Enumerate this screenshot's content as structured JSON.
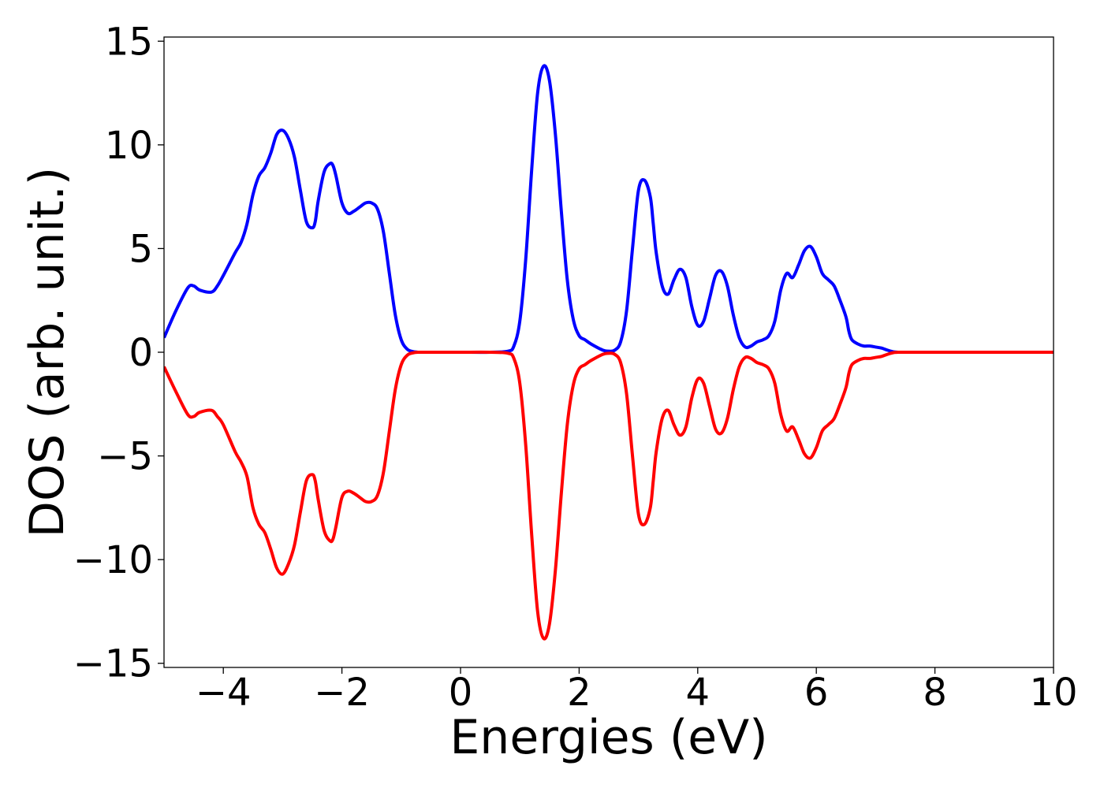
{
  "chart_data": {
    "type": "line",
    "title": "",
    "xlabel": "Energies (eV)",
    "ylabel": "DOS (arb. unit.)",
    "xlim": [
      -5,
      10
    ],
    "ylim": [
      -15.2,
      15.2
    ],
    "xticks": [
      -4,
      -2,
      0,
      2,
      4,
      6,
      8,
      10
    ],
    "xtick_labels": [
      "−4",
      "−2",
      "0",
      "2",
      "4",
      "6",
      "8",
      "10"
    ],
    "yticks": [
      15,
      10,
      5,
      0,
      -5,
      -10,
      -15
    ],
    "ytick_labels": [
      "15",
      "10",
      "5",
      "0",
      "−5",
      "−10",
      "−15"
    ],
    "grid": false,
    "legend": "none",
    "series": [
      {
        "color": "#0000ff",
        "x": [
          -5.0,
          -4.8,
          -4.6,
          -4.5,
          -4.4,
          -4.2,
          -4.1,
          -4.0,
          -3.8,
          -3.7,
          -3.6,
          -3.5,
          -3.4,
          -3.3,
          -3.2,
          -3.1,
          -3.0,
          -2.9,
          -2.8,
          -2.7,
          -2.6,
          -2.5,
          -2.45,
          -2.4,
          -2.3,
          -2.2,
          -2.15,
          -2.1,
          -2.0,
          -1.9,
          -1.8,
          -1.7,
          -1.6,
          -1.5,
          -1.4,
          -1.3,
          -1.2,
          -1.1,
          -1.0,
          -0.9,
          -0.8,
          -0.7,
          -0.6,
          -0.4,
          0.0,
          0.5,
          0.8,
          0.9,
          1.0,
          1.1,
          1.2,
          1.3,
          1.4,
          1.5,
          1.6,
          1.7,
          1.8,
          1.9,
          2.0,
          2.1,
          2.2,
          2.4,
          2.5,
          2.6,
          2.7,
          2.8,
          2.9,
          3.0,
          3.1,
          3.2,
          3.25,
          3.3,
          3.4,
          3.5,
          3.6,
          3.7,
          3.8,
          3.9,
          4.0,
          4.1,
          4.2,
          4.3,
          4.4,
          4.5,
          4.6,
          4.7,
          4.8,
          4.9,
          5.0,
          5.1,
          5.2,
          5.3,
          5.4,
          5.5,
          5.6,
          5.7,
          5.8,
          5.9,
          6.0,
          6.1,
          6.2,
          6.3,
          6.4,
          6.5,
          6.55,
          6.6,
          6.7,
          6.8,
          6.9,
          7.0,
          7.1,
          7.2,
          7.3,
          7.4,
          7.5,
          7.6,
          7.7,
          7.8,
          7.9,
          8.0,
          8.2,
          8.5,
          9.0,
          10.0
        ],
        "values": [
          0.7,
          2.0,
          3.1,
          3.2,
          3.0,
          2.9,
          3.2,
          3.7,
          4.8,
          5.3,
          6.2,
          7.6,
          8.5,
          8.9,
          9.6,
          10.5,
          10.7,
          10.3,
          9.4,
          7.8,
          6.3,
          6.0,
          6.3,
          7.3,
          8.7,
          9.1,
          9.0,
          8.5,
          7.2,
          6.7,
          6.8,
          7.0,
          7.2,
          7.2,
          6.9,
          5.8,
          3.8,
          1.8,
          0.6,
          0.15,
          0.03,
          0.0,
          0.0,
          0.0,
          0.0,
          0.0,
          0.05,
          0.3,
          1.5,
          4.5,
          8.8,
          12.5,
          13.8,
          13.1,
          10.5,
          6.8,
          3.5,
          1.6,
          0.8,
          0.6,
          0.4,
          0.1,
          0.05,
          0.1,
          0.5,
          2.0,
          5.0,
          7.8,
          8.3,
          7.5,
          6.2,
          4.8,
          3.2,
          2.8,
          3.5,
          4.0,
          3.6,
          2.2,
          1.3,
          1.5,
          2.6,
          3.7,
          3.9,
          3.2,
          1.8,
          0.7,
          0.25,
          0.3,
          0.5,
          0.6,
          0.8,
          1.5,
          3.0,
          3.8,
          3.6,
          4.2,
          4.9,
          5.1,
          4.6,
          3.8,
          3.5,
          3.2,
          2.5,
          1.7,
          1.0,
          0.6,
          0.4,
          0.3,
          0.3,
          0.25,
          0.2,
          0.1,
          0.02,
          0.0,
          0.0,
          0.0,
          0.0,
          0.0,
          0.0,
          0.0,
          0.0,
          0.0,
          0.0,
          0.0
        ]
      },
      {
        "color": "#ff0000",
        "x": [
          -5.0,
          -4.8,
          -4.6,
          -4.5,
          -4.4,
          -4.2,
          -4.1,
          -4.0,
          -3.8,
          -3.7,
          -3.6,
          -3.5,
          -3.4,
          -3.3,
          -3.2,
          -3.1,
          -3.0,
          -2.9,
          -2.8,
          -2.7,
          -2.6,
          -2.5,
          -2.45,
          -2.4,
          -2.3,
          -2.2,
          -2.15,
          -2.1,
          -2.0,
          -1.9,
          -1.8,
          -1.7,
          -1.6,
          -1.5,
          -1.4,
          -1.3,
          -1.2,
          -1.1,
          -1.0,
          -0.9,
          -0.8,
          -0.7,
          -0.6,
          -0.4,
          0.0,
          0.5,
          0.8,
          0.9,
          1.0,
          1.1,
          1.2,
          1.3,
          1.4,
          1.5,
          1.6,
          1.7,
          1.8,
          1.9,
          2.0,
          2.1,
          2.2,
          2.4,
          2.5,
          2.6,
          2.7,
          2.8,
          2.9,
          3.0,
          3.1,
          3.2,
          3.25,
          3.3,
          3.4,
          3.5,
          3.6,
          3.7,
          3.8,
          3.9,
          4.0,
          4.1,
          4.2,
          4.3,
          4.4,
          4.5,
          4.6,
          4.7,
          4.8,
          4.9,
          5.0,
          5.1,
          5.2,
          5.3,
          5.4,
          5.5,
          5.6,
          5.7,
          5.8,
          5.9,
          6.0,
          6.1,
          6.2,
          6.3,
          6.4,
          6.5,
          6.55,
          6.6,
          6.7,
          6.8,
          6.9,
          7.0,
          7.1,
          7.2,
          7.3,
          7.4,
          7.5,
          7.6,
          7.7,
          7.8,
          7.9,
          8.0,
          8.2,
          8.5,
          9.0,
          10.0
        ],
        "values": [
          -0.7,
          -1.9,
          -3.0,
          -3.1,
          -2.9,
          -2.8,
          -3.1,
          -3.5,
          -4.8,
          -5.3,
          -6.0,
          -7.5,
          -8.3,
          -8.7,
          -9.5,
          -10.4,
          -10.7,
          -10.2,
          -9.3,
          -7.7,
          -6.2,
          -5.9,
          -6.2,
          -7.1,
          -8.6,
          -9.1,
          -9.0,
          -8.4,
          -7.0,
          -6.7,
          -6.8,
          -7.0,
          -7.2,
          -7.2,
          -6.9,
          -5.8,
          -3.8,
          -1.8,
          -0.6,
          -0.15,
          -0.03,
          0.0,
          0.0,
          0.0,
          0.0,
          0.0,
          -0.05,
          -0.3,
          -1.5,
          -4.5,
          -8.8,
          -12.5,
          -13.8,
          -13.1,
          -10.5,
          -6.8,
          -3.5,
          -1.6,
          -0.8,
          -0.6,
          -0.4,
          -0.1,
          -0.05,
          -0.1,
          -0.5,
          -2.0,
          -5.0,
          -7.8,
          -8.3,
          -7.5,
          -6.2,
          -4.8,
          -3.2,
          -2.8,
          -3.5,
          -4.0,
          -3.6,
          -2.2,
          -1.3,
          -1.5,
          -2.6,
          -3.7,
          -3.9,
          -3.2,
          -1.8,
          -0.7,
          -0.25,
          -0.3,
          -0.5,
          -0.6,
          -0.8,
          -1.5,
          -3.0,
          -3.8,
          -3.6,
          -4.2,
          -4.9,
          -5.1,
          -4.6,
          -3.8,
          -3.5,
          -3.2,
          -2.5,
          -1.7,
          -1.0,
          -0.6,
          -0.4,
          -0.3,
          -0.3,
          -0.25,
          -0.2,
          -0.1,
          -0.02,
          0.0,
          0.0,
          0.0,
          0.0,
          0.0,
          0.0,
          0.0,
          0.0,
          0.0,
          0.0,
          0.0
        ]
      }
    ]
  }
}
